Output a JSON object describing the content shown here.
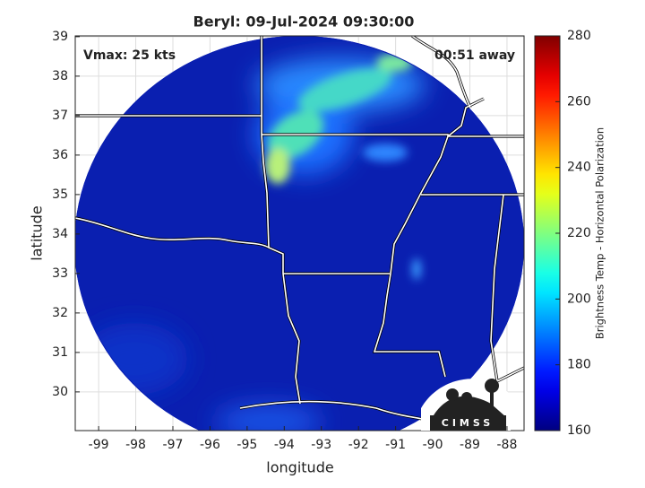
{
  "chart_data": {
    "type": "image",
    "title": "Beryl: 09-Jul-2024 09:30:00",
    "xlabel": "longitude",
    "ylabel": "latitude",
    "annotations": [
      "Vmax: 25 kts",
      "00:51 away"
    ],
    "logo_text": "CIMSS",
    "xlim": [
      -99.63,
      -87.54
    ],
    "ylim": [
      29.02,
      39.02
    ],
    "xticks": [
      -99,
      -98,
      -97,
      -96,
      -95,
      -94,
      -93,
      -92,
      -91,
      -90,
      -89,
      -88
    ],
    "yticks": [
      30,
      31,
      32,
      33,
      34,
      35,
      36,
      37,
      38,
      39
    ],
    "grid": true,
    "colorbar": {
      "label": "Brightness Temp - Horizontal Polarization",
      "colormap": "jet",
      "lim": [
        160,
        280
      ],
      "ticks": [
        160,
        180,
        200,
        220,
        240,
        260,
        280
      ]
    }
  }
}
